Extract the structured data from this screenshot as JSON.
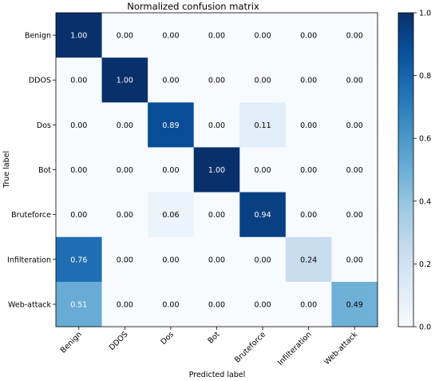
{
  "chart_data": {
    "type": "heatmap",
    "title": "Normalized confusion matrix",
    "xlabel": "Predicted label",
    "ylabel": "True label",
    "x_categories": [
      "Benign",
      "DDOS",
      "Dos",
      "Bot",
      "Bruteforce",
      "Infilteration",
      "Web-attack"
    ],
    "y_categories": [
      "Benign",
      "DDOS",
      "Dos",
      "Bot",
      "Bruteforce",
      "Infilteration",
      "Web-attack"
    ],
    "values": [
      [
        1.0,
        0.0,
        0.0,
        0.0,
        0.0,
        0.0,
        0.0
      ],
      [
        0.0,
        1.0,
        0.0,
        0.0,
        0.0,
        0.0,
        0.0
      ],
      [
        0.0,
        0.0,
        0.89,
        0.0,
        0.11,
        0.0,
        0.0
      ],
      [
        0.0,
        0.0,
        0.0,
        1.0,
        0.0,
        0.0,
        0.0
      ],
      [
        0.0,
        0.0,
        0.06,
        0.0,
        0.94,
        0.0,
        0.0
      ],
      [
        0.76,
        0.0,
        0.0,
        0.0,
        0.0,
        0.24,
        0.0
      ],
      [
        0.51,
        0.0,
        0.0,
        0.0,
        0.0,
        0.0,
        0.49
      ]
    ],
    "value_format": "0.00",
    "colormap": "Blues",
    "colorbar": {
      "range": [
        0.0,
        1.0
      ],
      "ticks": [
        "0.0",
        "0.2",
        "0.4",
        "0.6",
        "0.8",
        "1.0"
      ]
    },
    "grid": false
  }
}
